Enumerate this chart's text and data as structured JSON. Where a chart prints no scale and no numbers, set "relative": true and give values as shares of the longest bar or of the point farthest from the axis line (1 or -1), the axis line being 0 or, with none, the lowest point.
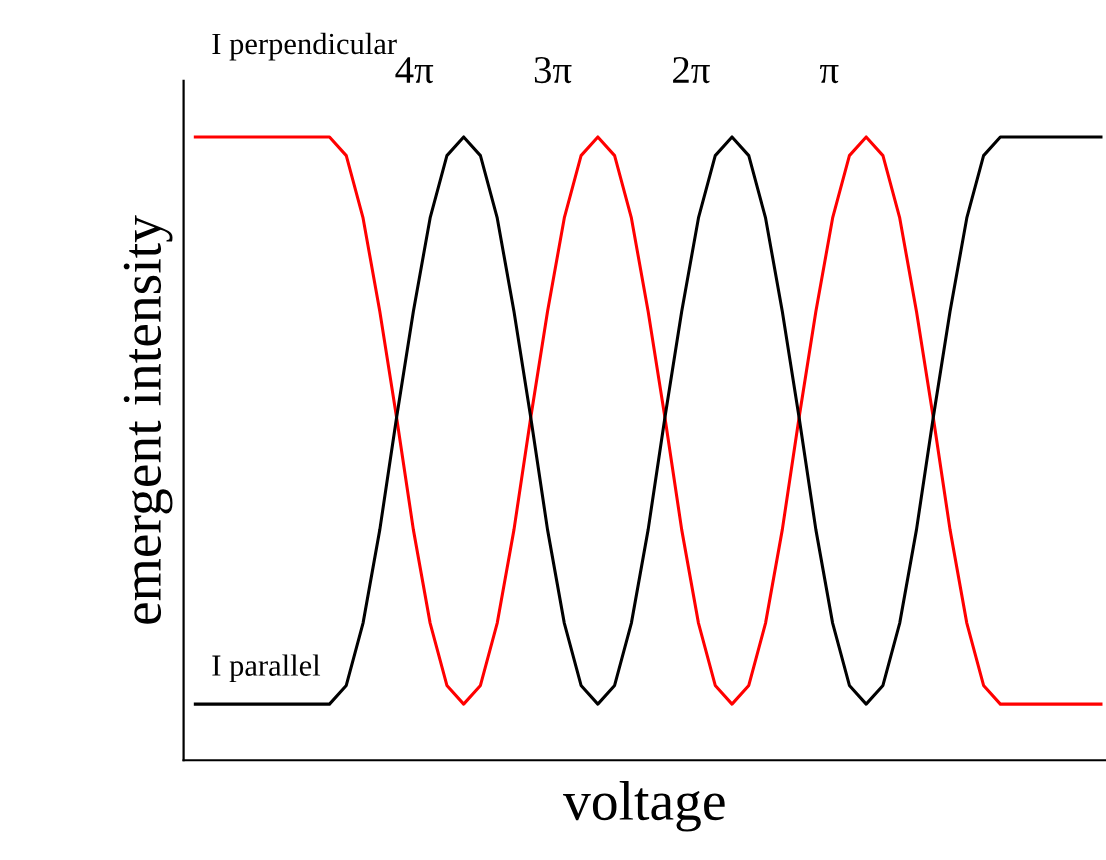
{
  "chart_data": {
    "type": "line",
    "relative": true,
    "xlabel": "voltage",
    "ylabel": "emergent intensity",
    "categories": [
      null,
      null,
      null,
      null,
      null,
      null,
      null,
      null,
      null,
      null,
      null,
      null,
      null,
      null,
      null,
      null,
      null,
      null,
      null,
      null,
      null,
      null,
      null,
      null,
      null,
      null,
      null,
      null,
      null,
      null,
      null,
      null,
      null,
      null,
      null,
      null,
      null,
      null,
      null,
      null,
      null,
      null,
      null,
      null,
      null,
      null,
      null,
      null,
      null,
      null,
      null,
      null,
      null,
      null,
      null
    ],
    "series": [
      {
        "color": "#ff0000",
        "values": [
          1,
          1,
          1,
          1,
          1,
          1,
          1,
          1,
          1,
          0.97,
          0.87,
          0.72,
          0.55,
          0.37,
          0.22,
          0.12,
          0.09,
          0.12,
          0.22,
          0.37,
          0.55,
          0.72,
          0.87,
          0.97,
          1,
          0.97,
          0.87,
          0.72,
          0.55,
          0.37,
          0.22,
          0.12,
          0.09,
          0.12,
          0.22,
          0.37,
          0.55,
          0.72,
          0.87,
          0.97,
          1,
          0.97,
          0.87,
          0.72,
          0.55,
          0.37,
          0.22,
          0.12,
          0.09,
          0.09,
          0.09,
          0.09,
          0.09,
          0.09,
          0.09
        ]
      },
      {
        "color": "#000000",
        "values": [
          0.09,
          0.09,
          0.09,
          0.09,
          0.09,
          0.09,
          0.09,
          0.09,
          0.09,
          0.12,
          0.22,
          0.37,
          0.55,
          0.72,
          0.87,
          0.97,
          1,
          0.97,
          0.87,
          0.72,
          0.55,
          0.37,
          0.22,
          0.12,
          0.09,
          0.12,
          0.22,
          0.37,
          0.55,
          0.72,
          0.87,
          0.97,
          1,
          0.97,
          0.87,
          0.72,
          0.55,
          0.37,
          0.22,
          0.12,
          0.09,
          0.12,
          0.22,
          0.37,
          0.55,
          0.72,
          0.87,
          0.97,
          1,
          1,
          1,
          1,
          1,
          1,
          1
        ]
      }
    ],
    "annotations": [
      "I perpendicular",
      "4π",
      "3π",
      "2π",
      "π",
      "I parallel"
    ],
    "grid": false,
    "legend": false,
    "marker": "none",
    "line_style": "solid"
  }
}
